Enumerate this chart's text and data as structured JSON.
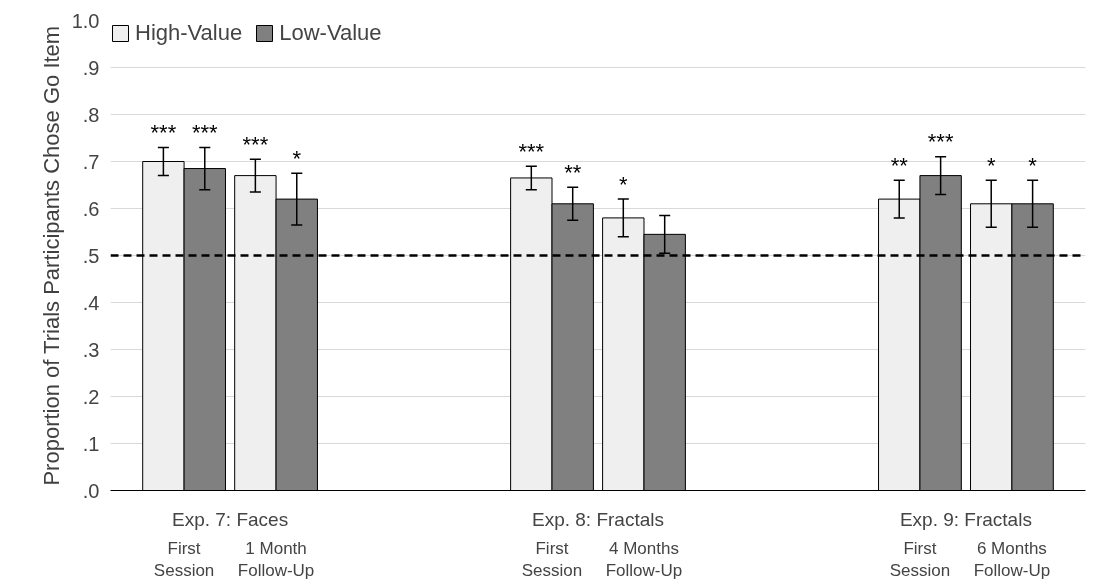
{
  "chart_data": {
    "type": "bar",
    "ylabel": "Proportion of Trials Participants Chose Go Item",
    "categories": [
      "First Session",
      "1 Month Follow-Up",
      "First Session",
      "4 Months Follow-Up",
      "First Session",
      "6 Months Follow-Up"
    ],
    "annotations": [
      "Exp. 7: Faces",
      "Exp. 8: Fractals",
      "Exp. 9: Fractals"
    ],
    "series": [
      {
        "name": "High-Value",
        "color": "#efefef",
        "values": [
          0.7,
          0.67,
          0.665,
          0.58,
          0.62,
          0.61
        ],
        "errors": [
          0.03,
          0.035,
          0.025,
          0.04,
          0.04,
          0.05
        ],
        "value_labels": [
          "***",
          "***",
          "***",
          "*",
          "**",
          "*"
        ]
      },
      {
        "name": "Low-Value",
        "color": "#808080",
        "values": [
          0.685,
          0.62,
          0.61,
          0.545,
          0.67,
          0.61
        ],
        "errors": [
          0.045,
          0.055,
          0.035,
          0.04,
          0.04,
          0.05
        ],
        "value_labels": [
          "***",
          "*",
          "**",
          null,
          "***",
          "*"
        ]
      }
    ],
    "ylim": [
      0,
      1.0
    ],
    "yticks": [
      {
        "value": 0,
        "label": ".0"
      },
      {
        "value": 0.1,
        "label": ".1"
      },
      {
        "value": 0.2,
        "label": ".2"
      },
      {
        "value": 0.3,
        "label": ".3"
      },
      {
        "value": 0.4,
        "label": ".4"
      },
      {
        "value": 0.5,
        "label": ".5"
      },
      {
        "value": 0.6,
        "label": ".6"
      },
      {
        "value": 0.7,
        "label": ".7"
      },
      {
        "value": 0.8,
        "label": ".8"
      },
      {
        "value": 0.9,
        "label": ".9"
      },
      {
        "value": 1.0,
        "label": "1.0"
      }
    ],
    "ref_lines": [
      {
        "axis": "y",
        "value": 0.5,
        "color": "#000000",
        "line_style": "dashed"
      }
    ],
    "grid": "y",
    "legend": "top left"
  }
}
